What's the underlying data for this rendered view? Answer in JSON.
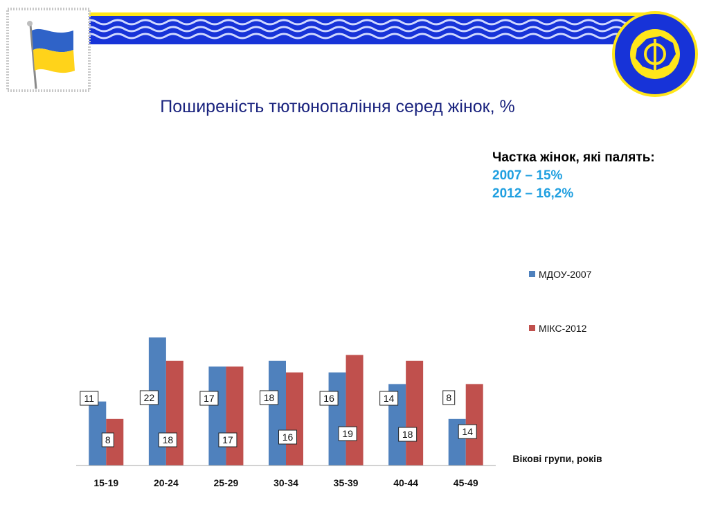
{
  "page": {
    "title": "Поширеність тютюнопаління серед жінок, %"
  },
  "info": {
    "heading": "Частка жінок, які палять:",
    "lines": [
      "2007 – 15%",
      "2012 – 16,2%"
    ]
  },
  "header": {
    "flag_icon": "ukrainian-flag-icon",
    "emblem_icon": "institute-emblem-icon",
    "band_color": "#1733d8",
    "wave_color": "#cfd8ff",
    "accent_color": "#ffe61a"
  },
  "chart_data": {
    "type": "bar",
    "categories": [
      "15-19",
      "20-24",
      "25-29",
      "30-34",
      "35-39",
      "40-44",
      "45-49"
    ],
    "series": [
      {
        "name": "МДОУ-2007",
        "color": "#4f81bd",
        "values": [
          11,
          22,
          17,
          18,
          16,
          14,
          8
        ]
      },
      {
        "name": "МІКС-2012",
        "color": "#c0504d",
        "values": [
          8,
          18,
          17,
          16,
          19,
          18,
          14
        ]
      }
    ],
    "ylim": [
      0,
      22.5
    ],
    "grid": false,
    "xlabel": "Вікові групи, років",
    "ylabel": "",
    "legend_position": "right"
  }
}
